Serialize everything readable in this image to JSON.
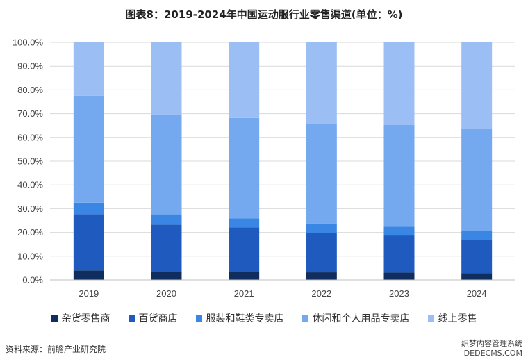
{
  "chart_data": {
    "type": "bar",
    "stacked": true,
    "title": "图表8：2019-2024年中国运动服行业零售渠道(单位：%)",
    "categories": [
      "2019",
      "2020",
      "2021",
      "2022",
      "2023",
      "2024"
    ],
    "yticks": [
      "0.0%",
      "10.0%",
      "20.0%",
      "30.0%",
      "40.0%",
      "50.0%",
      "60.0%",
      "70.0%",
      "80.0%",
      "90.0%",
      "100.0%"
    ],
    "ylim": [
      0,
      100
    ],
    "grid": true,
    "legend_position": "bottom",
    "series": [
      {
        "name": "杂货零售商",
        "color": "#0f2d5e",
        "values": [
          4.0,
          3.5,
          3.3,
          3.2,
          3.1,
          2.8
        ]
      },
      {
        "name": "百货商店",
        "color": "#1f5bbf",
        "values": [
          23.7,
          19.8,
          18.8,
          16.4,
          15.6,
          14.1
        ]
      },
      {
        "name": "服装和鞋类专卖店",
        "color": "#3a86e4",
        "values": [
          4.8,
          4.3,
          3.8,
          4.1,
          3.7,
          3.6
        ]
      },
      {
        "name": "休闲和个人用品专卖店",
        "color": "#74a8ef",
        "values": [
          45.0,
          42.0,
          42.3,
          41.9,
          42.8,
          43.0
        ]
      },
      {
        "name": "线上零售",
        "color": "#9bbff5",
        "values": [
          22.5,
          30.4,
          31.8,
          34.4,
          34.8,
          36.5
        ]
      }
    ]
  },
  "source": "资料来源：前瞻产业研究院",
  "watermark": {
    "line1": "织梦内容管理系统",
    "line2": "DEDECMS.COM"
  }
}
